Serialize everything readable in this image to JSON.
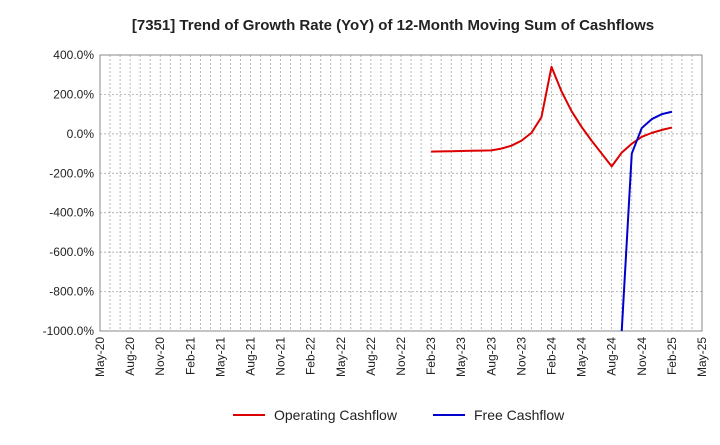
{
  "chart_data": {
    "type": "line",
    "title": "[7351]  Trend of Growth Rate (YoY) of 12-Month Moving Sum of Cashflows",
    "xlabel": "",
    "ylabel": "",
    "ylim": [
      -1000,
      400
    ],
    "yticks": [
      400,
      200,
      0,
      -200,
      -400,
      -600,
      -800,
      -1000
    ],
    "ytick_labels": [
      "400.0%",
      "200.0%",
      "0.0%",
      "-200.0%",
      "-400.0%",
      "-600.0%",
      "-800.0%",
      "-1000.0%"
    ],
    "x_months": [
      "2020-05",
      "2020-06",
      "2020-07",
      "2020-08",
      "2020-09",
      "2020-10",
      "2020-11",
      "2020-12",
      "2021-01",
      "2021-02",
      "2021-03",
      "2021-04",
      "2021-05",
      "2021-06",
      "2021-07",
      "2021-08",
      "2021-09",
      "2021-10",
      "2021-11",
      "2021-12",
      "2022-01",
      "2022-02",
      "2022-03",
      "2022-04",
      "2022-05",
      "2022-06",
      "2022-07",
      "2022-08",
      "2022-09",
      "2022-10",
      "2022-11",
      "2022-12",
      "2023-01",
      "2023-02",
      "2023-03",
      "2023-04",
      "2023-05",
      "2023-06",
      "2023-07",
      "2023-08",
      "2023-09",
      "2023-10",
      "2023-11",
      "2023-12",
      "2024-01",
      "2024-02",
      "2024-03",
      "2024-04",
      "2024-05",
      "2024-06",
      "2024-07",
      "2024-08",
      "2024-09",
      "2024-10",
      "2024-11",
      "2024-12",
      "2025-01",
      "2025-02",
      "2025-03",
      "2025-04",
      "2025-05"
    ],
    "xtick_labels": [
      "May-20",
      "Aug-20",
      "Nov-20",
      "Feb-21",
      "May-21",
      "Aug-21",
      "Nov-21",
      "Feb-22",
      "May-22",
      "Aug-22",
      "Nov-22",
      "Feb-23",
      "May-23",
      "Aug-23",
      "Nov-23",
      "Feb-24",
      "May-24",
      "Aug-24",
      "Nov-24",
      "Feb-25",
      "May-25"
    ],
    "grid": true,
    "legend_position": "bottom",
    "series": [
      {
        "name": "Operating Cashflow",
        "color": "#dd0000",
        "x": [
          "2023-02",
          "2023-03",
          "2023-04",
          "2023-05",
          "2023-06",
          "2023-07",
          "2023-08",
          "2023-09",
          "2023-10",
          "2023-11",
          "2023-12",
          "2024-01",
          "2024-02",
          "2024-03",
          "2024-04",
          "2024-05",
          "2024-06",
          "2024-07",
          "2024-08",
          "2024-09",
          "2024-10",
          "2024-11",
          "2024-12",
          "2025-01",
          "2025-02"
        ],
        "values": [
          -90,
          -89,
          -88,
          -87,
          -86,
          -85,
          -84,
          -75,
          -60,
          -35,
          5,
          85,
          340,
          215,
          115,
          35,
          -35,
          -100,
          -165,
          -95,
          -50,
          -15,
          5,
          20,
          32
        ]
      },
      {
        "name": "Free Cashflow",
        "color": "#0000cc",
        "x": [
          "2024-09",
          "2024-10",
          "2024-11",
          "2024-12",
          "2025-01",
          "2025-02"
        ],
        "values": [
          -1000,
          -100,
          30,
          75,
          100,
          112
        ]
      }
    ]
  }
}
